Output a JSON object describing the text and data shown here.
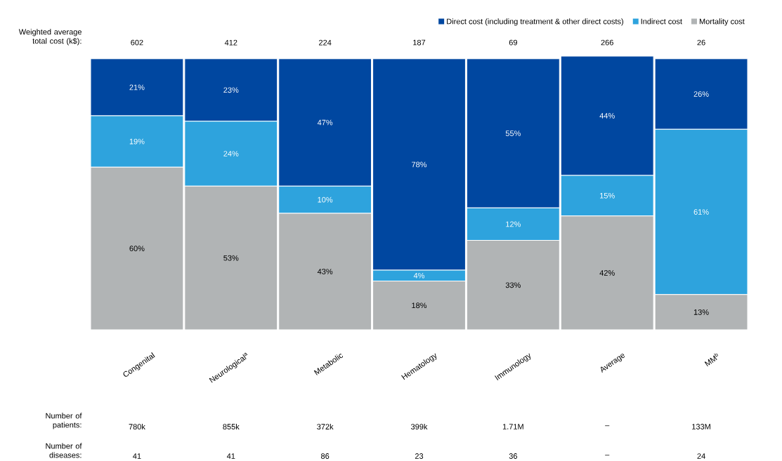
{
  "chart_data": {
    "type": "bar",
    "stacked": true,
    "legend": "top right",
    "categories": [
      "Congenital",
      "Neurological$^{a}$",
      "Metabolic",
      "Hematology",
      "Immunology",
      "Average",
      "MM$^{b}$"
    ],
    "series": [
      {
        "name": "Mortality cost",
        "color": "#b1b4b5",
        "values": [
          60,
          53,
          43,
          18,
          33,
          42,
          13
        ],
        "value_labels": [
          "60%",
          "53%",
          "43%",
          "18%",
          "33%",
          "42%",
          "13%"
        ]
      },
      {
        "name": "Indirect cost",
        "color": "#2ea3dd",
        "values": [
          19,
          24,
          10,
          4,
          12,
          15,
          61
        ],
        "value_labels": [
          "19%",
          "24%",
          "10%",
          "4%",
          "12%",
          "15%",
          "61%"
        ]
      },
      {
        "name": "Direct cost (including treatment & other direct costs)",
        "color": "#0047a0",
        "values": [
          21,
          23,
          47,
          78,
          55,
          44,
          26
        ],
        "value_labels": [
          "21%",
          "23%",
          "47%",
          "78%",
          "55%",
          "44%",
          "26%"
        ]
      }
    ],
    "annotations": [
      "Weighted average total cost (k$):",
      "602",
      "412",
      "224",
      "187",
      "69",
      "266",
      "26",
      "Number of patients:",
      "780k",
      "855k",
      "372k",
      "399k",
      "1.71M",
      "–",
      "133M",
      "Number of diseases:",
      "41",
      "41",
      "86",
      "23",
      "36",
      "–",
      "24"
    ]
  }
}
